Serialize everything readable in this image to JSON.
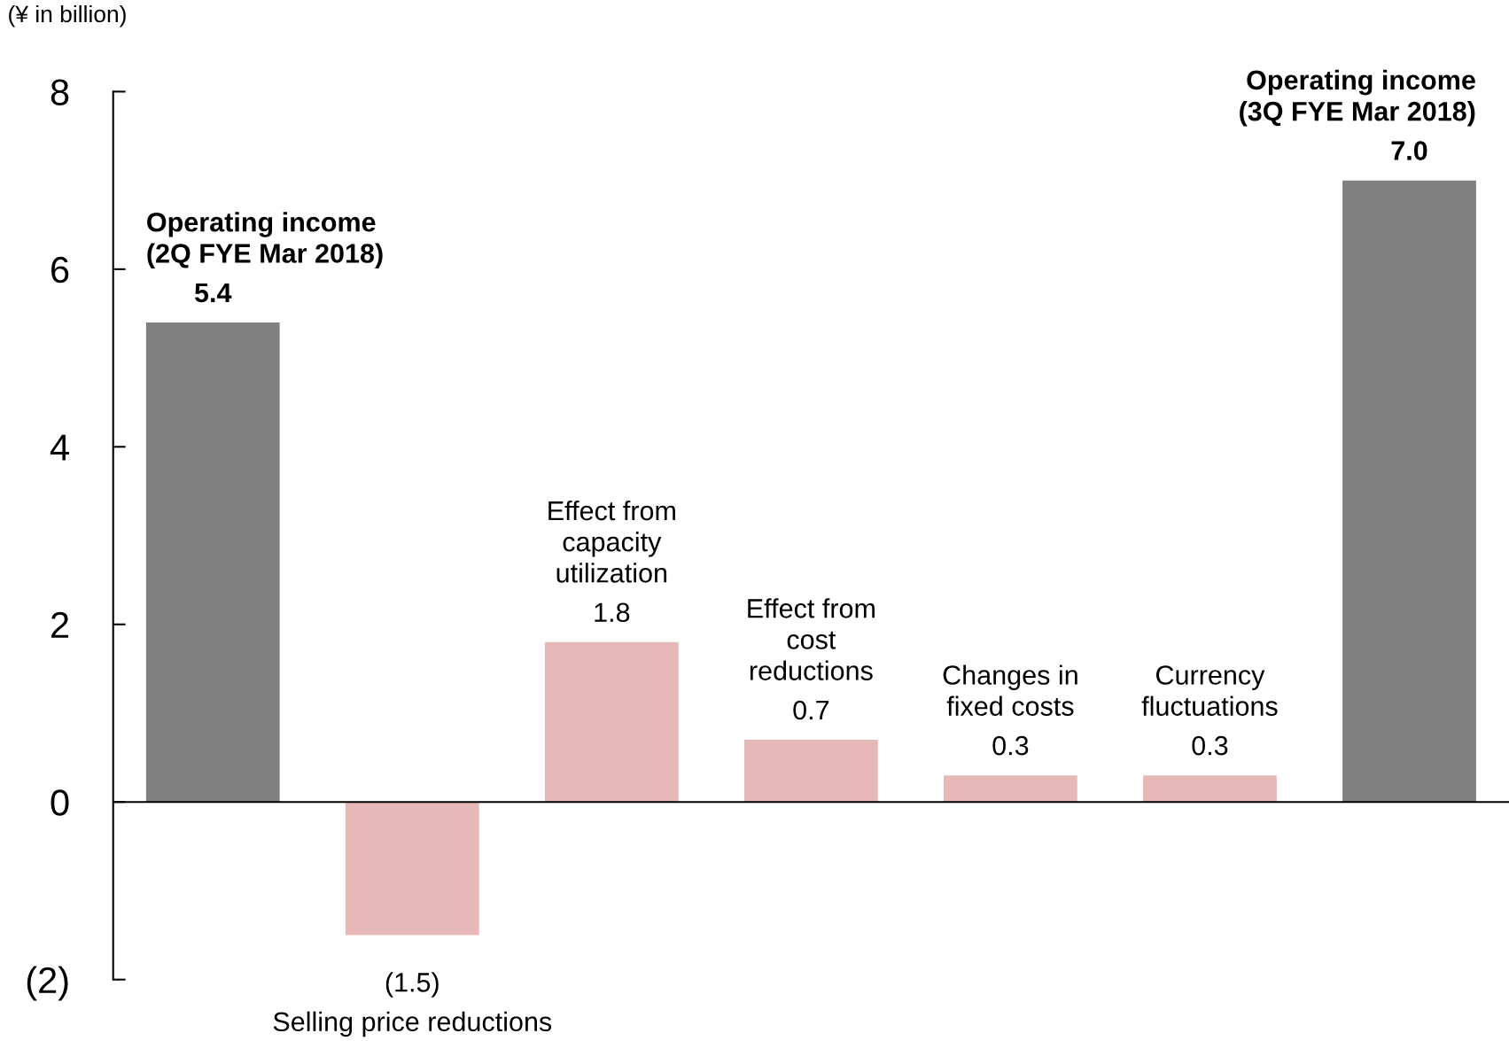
{
  "chart_data": {
    "type": "bar",
    "ylabel": "(¥ in billion)",
    "categories": [
      "Operating income\n(2Q FYE Mar 2018)",
      "Selling price reductions",
      "Effect from\ncapacity\nutilization",
      "Effect from\ncost\nreductions",
      "Changes in\nfixed costs",
      "Currency\nfluctuations",
      "Operating income\n(3Q FYE Mar 2018)"
    ],
    "values": [
      5.4,
      -1.5,
      1.8,
      0.7,
      0.3,
      0.3,
      7.0
    ],
    "colors": [
      "#808080",
      "#e6b8b7",
      "#e6b8b7",
      "#e6b8b7",
      "#e6b8b7",
      "#e6b8b7",
      "#808080"
    ],
    "value_labels": [
      "5.4",
      "(1.5)",
      "1.8",
      "0.7",
      "0.3",
      "0.3",
      "7.0"
    ],
    "ylim": [
      -2,
      8
    ],
    "yticks": [
      8,
      6,
      4,
      2,
      0,
      {
        "value": -2,
        "label": "(2)"
      }
    ],
    "ref_lines": [
      {
        "axis": "y",
        "value": 0,
        "color": "#000000"
      }
    ],
    "grid": false
  }
}
